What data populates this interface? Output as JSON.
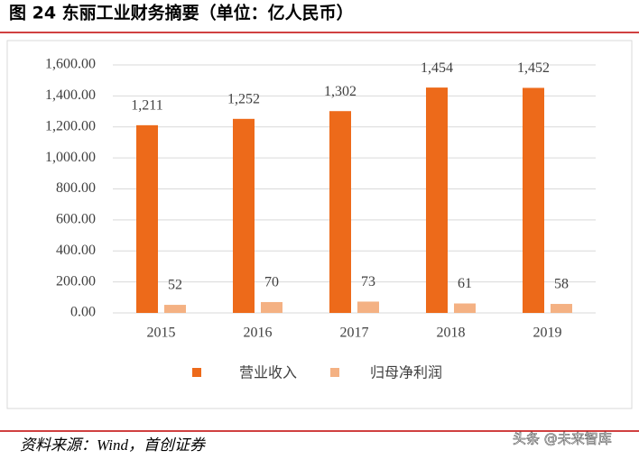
{
  "chart_data": {
    "type": "bar",
    "title": "图 24 东丽工业财务摘要（单位：亿人民币）",
    "categories": [
      "2015",
      "2016",
      "2017",
      "2018",
      "2019"
    ],
    "series": [
      {
        "name": "营业收入",
        "color": "#ED6A1A",
        "values": [
          1211,
          1252,
          1302,
          1454,
          1452
        ],
        "value_labels": [
          "1,211",
          "1,252",
          "1,302",
          "1,454",
          "1,452"
        ]
      },
      {
        "name": "归母净利润",
        "color": "#F4B183",
        "values": [
          52,
          70,
          73,
          61,
          58
        ]
      }
    ],
    "ylim": [
      0,
      1600
    ],
    "yticks": [
      {
        "value": 0,
        "label": "0.00"
      },
      {
        "value": 200,
        "label": "200.00"
      },
      {
        "value": 400,
        "label": "400.00"
      },
      {
        "value": 600,
        "label": "600.00"
      },
      {
        "value": 800,
        "label": "800.00"
      },
      {
        "value": 1000,
        "label": "1,000.00"
      },
      {
        "value": 1200,
        "label": "1,200.00"
      },
      {
        "value": 1400,
        "label": "1,400.00"
      },
      {
        "value": 1600,
        "label": "1,600.00"
      }
    ],
    "grid": true,
    "legend": "bottom"
  },
  "source": "资料来源：Wind，首创证券",
  "watermark": "头条 @未来智库"
}
